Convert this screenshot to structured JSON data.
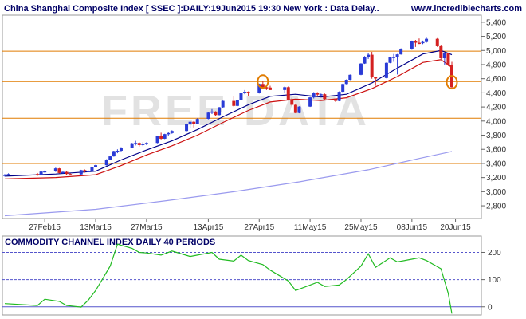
{
  "header": {
    "title": "China Shanghai Composite Index [ SSEC ]:DAILY:19Jun2015 19:30 New York : Data Delay..",
    "site": "www.incrediblecharts.com"
  },
  "watermark": "FREE DATA",
  "colors": {
    "bull_candle": "#2a3bd6",
    "bear_candle": "#d42020",
    "ma_short": "#cc1111",
    "ma_mid": "#000088",
    "ma_long": "#9a9aee",
    "support_line": "#e07b00",
    "cci_line": "#22bb22",
    "cci_ref": "#5555cc",
    "marker": "#e07b00"
  },
  "chart_data": [
    {
      "type": "candlestick",
      "title": "China Shanghai Composite Index [ SSEC ]:DAILY:19Jun2015 19:30 New York : Data Delay..",
      "x_tick_labels": [
        "27Feb15",
        "13Mar15",
        "27Mar15",
        "13Apr15",
        "27Apr15",
        "11May15",
        "25May15",
        "08Jun15",
        "20Jun15"
      ],
      "y_tick_labels": [
        "2,800",
        "3,000",
        "3,200",
        "3,400",
        "3,600",
        "3,800",
        "4,000",
        "4,200",
        "4,400",
        "4,600",
        "4,800",
        "5,000",
        "5,200",
        "5,400"
      ],
      "ylim": [
        2620,
        5500
      ],
      "grid": false,
      "horizontal_lines": [
        4990,
        4560,
        4040,
        3400
      ],
      "markers": [
        {
          "date": "2015-04-28",
          "value": 4560
        },
        {
          "date": "2015-06-19",
          "value": 4550
        }
      ],
      "ohlc_columns": [
        "date",
        "open",
        "high",
        "low",
        "close"
      ],
      "ohlc": [
        [
          "2015-02-16",
          3230,
          3250,
          3215,
          3240
        ],
        [
          "2015-02-17",
          3240,
          3260,
          3230,
          3250
        ],
        [
          "2015-02-25",
          3250,
          3265,
          3225,
          3235
        ],
        [
          "2015-02-26",
          3235,
          3290,
          3230,
          3285
        ],
        [
          "2015-02-27",
          3285,
          3300,
          3270,
          3290
        ],
        [
          "2015-03-02",
          3290,
          3340,
          3280,
          3330
        ],
        [
          "2015-03-03",
          3330,
          3335,
          3260,
          3265
        ],
        [
          "2015-03-04",
          3265,
          3285,
          3255,
          3280
        ],
        [
          "2015-03-05",
          3280,
          3290,
          3240,
          3250
        ],
        [
          "2015-03-06",
          3250,
          3260,
          3230,
          3245
        ],
        [
          "2015-03-09",
          3245,
          3310,
          3240,
          3305
        ],
        [
          "2015-03-10",
          3305,
          3315,
          3270,
          3290
        ],
        [
          "2015-03-11",
          3290,
          3300,
          3275,
          3295
        ],
        [
          "2015-03-12",
          3295,
          3360,
          3290,
          3350
        ],
        [
          "2015-03-13",
          3350,
          3380,
          3345,
          3375
        ],
        [
          "2015-03-16",
          3375,
          3460,
          3370,
          3450
        ],
        [
          "2015-03-17",
          3450,
          3510,
          3445,
          3500
        ],
        [
          "2015-03-18",
          3500,
          3580,
          3495,
          3575
        ],
        [
          "2015-03-19",
          3575,
          3600,
          3545,
          3580
        ],
        [
          "2015-03-20",
          3580,
          3630,
          3570,
          3620
        ],
        [
          "2015-03-23",
          3620,
          3690,
          3615,
          3685
        ],
        [
          "2015-03-24",
          3685,
          3720,
          3655,
          3690
        ],
        [
          "2015-03-25",
          3690,
          3700,
          3640,
          3660
        ],
        [
          "2015-03-26",
          3660,
          3700,
          3645,
          3680
        ],
        [
          "2015-03-27",
          3680,
          3700,
          3660,
          3690
        ],
        [
          "2015-03-30",
          3690,
          3790,
          3685,
          3785
        ],
        [
          "2015-03-31",
          3785,
          3835,
          3740,
          3750
        ],
        [
          "2015-04-01",
          3750,
          3820,
          3745,
          3815
        ],
        [
          "2015-04-02",
          3815,
          3840,
          3790,
          3830
        ],
        [
          "2015-04-03",
          3830,
          3870,
          3820,
          3860
        ],
        [
          "2015-04-07",
          3860,
          3965,
          3855,
          3960
        ],
        [
          "2015-04-08",
          3960,
          3995,
          3900,
          3990
        ],
        [
          "2015-04-09",
          3990,
          4000,
          3910,
          3960
        ],
        [
          "2015-04-10",
          3960,
          4040,
          3955,
          4030
        ],
        [
          "2015-04-13",
          4030,
          4130,
          4025,
          4120
        ],
        [
          "2015-04-14",
          4120,
          4170,
          4100,
          4135
        ],
        [
          "2015-04-15",
          4135,
          4140,
          4070,
          4085
        ],
        [
          "2015-04-16",
          4085,
          4200,
          4080,
          4195
        ],
        [
          "2015-04-17",
          4195,
          4290,
          4190,
          4285
        ],
        [
          "2015-04-20",
          4285,
          4350,
          4200,
          4215
        ],
        [
          "2015-04-21",
          4215,
          4300,
          4210,
          4295
        ],
        [
          "2015-04-22",
          4295,
          4400,
          4290,
          4395
        ],
        [
          "2015-04-23",
          4395,
          4440,
          4380,
          4415
        ],
        [
          "2015-04-24",
          4415,
          4420,
          4360,
          4395
        ],
        [
          "2015-04-27",
          4395,
          4530,
          4390,
          4525
        ],
        [
          "2015-04-28",
          4525,
          4570,
          4470,
          4480
        ],
        [
          "2015-04-29",
          4480,
          4500,
          4440,
          4475
        ],
        [
          "2015-04-30",
          4475,
          4500,
          4440,
          4440
        ],
        [
          "2015-05-04",
          4440,
          4490,
          4400,
          4480
        ],
        [
          "2015-05-05",
          4480,
          4490,
          4290,
          4300
        ],
        [
          "2015-05-06",
          4300,
          4330,
          4210,
          4230
        ],
        [
          "2015-05-07",
          4230,
          4240,
          4110,
          4115
        ],
        [
          "2015-05-08",
          4115,
          4210,
          4110,
          4205
        ],
        [
          "2015-05-11",
          4205,
          4340,
          4200,
          4335
        ],
        [
          "2015-05-12",
          4335,
          4410,
          4320,
          4400
        ],
        [
          "2015-05-13",
          4400,
          4410,
          4360,
          4375
        ],
        [
          "2015-05-14",
          4375,
          4390,
          4360,
          4380
        ],
        [
          "2015-05-15",
          4380,
          4390,
          4300,
          4310
        ],
        [
          "2015-05-18",
          4310,
          4320,
          4270,
          4285
        ],
        [
          "2015-05-19",
          4285,
          4420,
          4280,
          4415
        ],
        [
          "2015-05-20",
          4415,
          4530,
          4410,
          4525
        ],
        [
          "2015-05-21",
          4525,
          4590,
          4520,
          4585
        ],
        [
          "2015-05-22",
          4585,
          4660,
          4580,
          4655
        ],
        [
          "2015-05-25",
          4655,
          4820,
          4650,
          4815
        ],
        [
          "2015-05-26",
          4815,
          4920,
          4810,
          4910
        ],
        [
          "2015-05-27",
          4910,
          4960,
          4880,
          4940
        ],
        [
          "2015-05-28",
          4940,
          4980,
          4600,
          4620
        ],
        [
          "2015-05-29",
          4620,
          4630,
          4500,
          4610
        ],
        [
          "2015-06-01",
          4610,
          4830,
          4605,
          4825
        ],
        [
          "2015-06-02",
          4825,
          4910,
          4820,
          4905
        ],
        [
          "2015-06-03",
          4905,
          4950,
          4840,
          4910
        ],
        [
          "2015-06-04",
          4910,
          4950,
          4660,
          4945
        ],
        [
          "2015-06-05",
          4945,
          5030,
          4940,
          5020
        ],
        [
          "2015-06-08",
          5020,
          5140,
          5010,
          5130
        ],
        [
          "2015-06-09",
          5130,
          5150,
          5050,
          5110
        ],
        [
          "2015-06-10",
          5110,
          5170,
          5090,
          5105
        ],
        [
          "2015-06-11",
          5105,
          5140,
          5090,
          5120
        ],
        [
          "2015-06-12",
          5120,
          5180,
          5110,
          5165
        ],
        [
          "2015-06-15",
          5165,
          5175,
          5050,
          5060
        ],
        [
          "2015-06-16",
          5060,
          5070,
          4880,
          4890
        ],
        [
          "2015-06-17",
          4890,
          4970,
          4790,
          4960
        ],
        [
          "2015-06-18",
          4960,
          4970,
          4780,
          4790
        ],
        [
          "2015-06-19",
          4790,
          4840,
          4470,
          4480
        ]
      ],
      "series": [
        {
          "label_code": "ma_short",
          "x": [
            "2015-02-16",
            "2015-03-02",
            "2015-03-13",
            "2015-03-20",
            "2015-03-27",
            "2015-04-03",
            "2015-04-10",
            "2015-04-17",
            "2015-04-24",
            "2015-04-30",
            "2015-05-07",
            "2015-05-14",
            "2015-05-21",
            "2015-05-28",
            "2015-06-04",
            "2015-06-11",
            "2015-06-16",
            "2015-06-19"
          ],
          "values": [
            3180,
            3200,
            3240,
            3370,
            3520,
            3650,
            3800,
            3980,
            4150,
            4270,
            4310,
            4290,
            4330,
            4460,
            4630,
            4830,
            4870,
            4760
          ]
        },
        {
          "label_code": "ma_mid",
          "x": [
            "2015-02-16",
            "2015-03-02",
            "2015-03-13",
            "2015-03-20",
            "2015-03-27",
            "2015-04-03",
            "2015-04-10",
            "2015-04-17",
            "2015-04-24",
            "2015-04-30",
            "2015-05-07",
            "2015-05-14",
            "2015-05-21",
            "2015-05-28",
            "2015-06-04",
            "2015-06-11",
            "2015-06-16",
            "2015-06-19"
          ],
          "values": [
            3220,
            3250,
            3290,
            3450,
            3590,
            3720,
            3880,
            4060,
            4230,
            4350,
            4380,
            4340,
            4380,
            4540,
            4750,
            4950,
            5000,
            4940
          ]
        },
        {
          "label_code": "ma_long",
          "x": [
            "2015-02-16",
            "2015-03-13",
            "2015-04-01",
            "2015-04-20",
            "2015-05-08",
            "2015-05-27",
            "2015-06-10",
            "2015-06-19"
          ],
          "values": [
            2660,
            2750,
            2870,
            3000,
            3140,
            3310,
            3470,
            3570
          ]
        }
      ]
    },
    {
      "type": "line",
      "title": "COMMODITY CHANNEL INDEX DAILY 40 PERIODS",
      "y_tick_labels": [
        "0",
        "100",
        "200"
      ],
      "ylim": [
        -30,
        260
      ],
      "reference_lines": [
        200,
        100,
        0
      ],
      "series": [
        {
          "label_code": "cci",
          "x": [
            "2015-02-16",
            "2015-02-25",
            "2015-02-27",
            "2015-03-03",
            "2015-03-05",
            "2015-03-09",
            "2015-03-11",
            "2015-03-13",
            "2015-03-17",
            "2015-03-19",
            "2015-03-23",
            "2015-03-25",
            "2015-03-27",
            "2015-03-31",
            "2015-04-03",
            "2015-04-08",
            "2015-04-10",
            "2015-04-14",
            "2015-04-16",
            "2015-04-20",
            "2015-04-22",
            "2015-04-24",
            "2015-04-28",
            "2015-04-30",
            "2015-05-05",
            "2015-05-07",
            "2015-05-11",
            "2015-05-13",
            "2015-05-15",
            "2015-05-19",
            "2015-05-21",
            "2015-05-25",
            "2015-05-27",
            "2015-05-29",
            "2015-06-02",
            "2015-06-04",
            "2015-06-08",
            "2015-06-10",
            "2015-06-12",
            "2015-06-16",
            "2015-06-18",
            "2015-06-19"
          ],
          "values": [
            12,
            5,
            28,
            20,
            5,
            -1,
            25,
            60,
            150,
            230,
            215,
            200,
            198,
            190,
            205,
            185,
            190,
            200,
            175,
            168,
            190,
            170,
            155,
            135,
            95,
            60,
            80,
            90,
            75,
            80,
            100,
            150,
            195,
            145,
            180,
            165,
            175,
            180,
            170,
            140,
            50,
            -25
          ]
        }
      ]
    }
  ]
}
